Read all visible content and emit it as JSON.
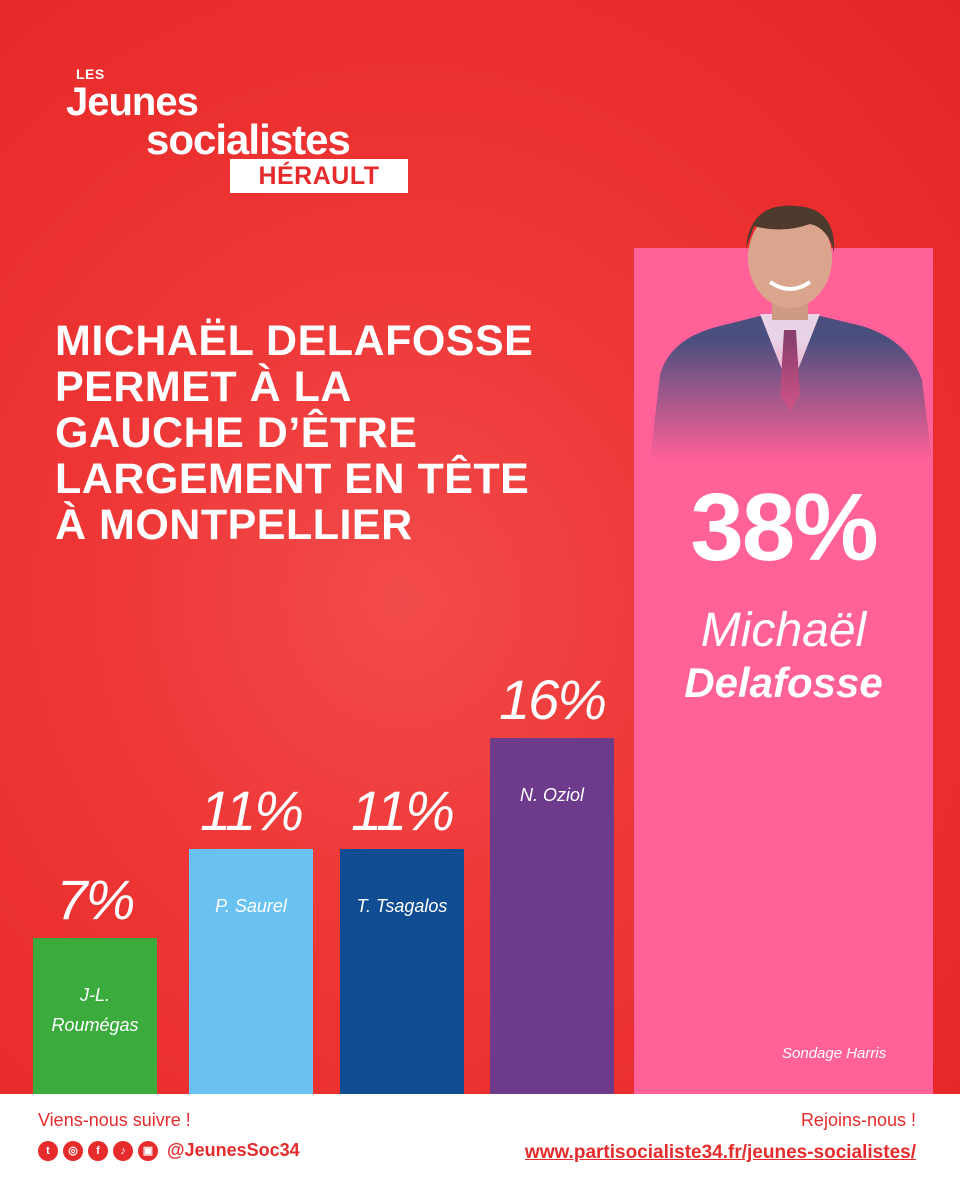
{
  "logo": {
    "les": "LES",
    "jeunes": "Jeunes",
    "socialistes": "socialistes",
    "herault": "HÉRAULT"
  },
  "headline": [
    "MICHAËL DELAFOSSE",
    "PERMET À LA",
    "GAUCHE D’ÊTRE",
    "LARGEMENT EN TÊTE",
    "À MONTPELLIER"
  ],
  "chart_data": {
    "type": "bar",
    "categories": [
      "J-L. Roumégas",
      "P. Saurel",
      "T. Tsagalos",
      "N. Oziol",
      "Michaël Delafosse"
    ],
    "values": [
      7,
      11,
      11,
      16,
      38
    ],
    "value_labels": [
      "7%",
      "11%",
      "11%",
      "16%",
      "38%"
    ],
    "label_lines": [
      [
        "J-L.",
        "Roumégas"
      ],
      [
        "P. Saurel"
      ],
      [
        "T. Tsagalos"
      ],
      [
        "N. Oziol"
      ],
      [
        "Michaël",
        "Delafosse"
      ]
    ],
    "colors": [
      "#3aab3c",
      "#69c2f2",
      "#0f4c92",
      "#6e3b8c",
      "#ff6198"
    ],
    "ylim": [
      0,
      38
    ],
    "annotation": "Sondage Harris",
    "title": "",
    "xlabel": "",
    "ylabel": "",
    "grid": false
  },
  "footer": {
    "follow": "Viens-nous suivre !",
    "icons": [
      "twitter-icon",
      "instagram-icon",
      "facebook-icon",
      "tiktok-icon",
      "twitch-icon"
    ],
    "handle": "@JeunesSoc34",
    "join": "Rejoins-nous !",
    "url": "www.partisocialiste34.fr/jeunes-socialistes/"
  }
}
